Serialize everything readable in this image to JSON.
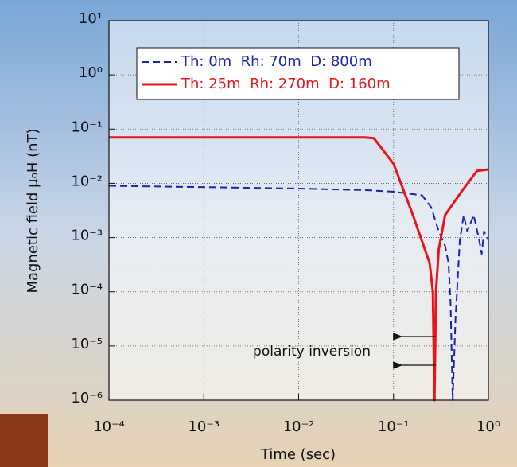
{
  "chart_data": {
    "type": "line",
    "x_label": "Time (sec)",
    "y_label": "Magnetic field μ₀H (nT)",
    "annotation": "polarity inversion",
    "log_x": true,
    "log_y": true,
    "grid": true,
    "legend": "top-right",
    "xlim": [
      0.0001,
      1
    ],
    "ylim": [
      1e-06,
      10
    ],
    "xticks": [
      {
        "value": 0.0001,
        "label": "10⁻⁴"
      },
      {
        "value": 0.001,
        "label": "10⁻³"
      },
      {
        "value": 0.01,
        "label": "10⁻²"
      },
      {
        "value": 0.1,
        "label": "10⁻¹"
      },
      {
        "value": 1,
        "label": "10⁰"
      }
    ],
    "yticks": [
      {
        "value": 1e-06,
        "label": "10⁻⁶"
      },
      {
        "value": 1e-05,
        "label": "10⁻⁵"
      },
      {
        "value": 0.0001,
        "label": "10⁻⁴"
      },
      {
        "value": 0.001,
        "label": "10⁻³"
      },
      {
        "value": 0.01,
        "label": "10⁻²"
      },
      {
        "value": 0.1,
        "label": "10⁻¹"
      },
      {
        "value": 1,
        "label": "10⁰"
      },
      {
        "value": 10,
        "label": "10¹"
      }
    ],
    "series": [
      {
        "name": "Th: 0m  Rh: 70m  D: 800m",
        "color": "#1a22b0",
        "dash": true,
        "x": [
          0.0001,
          0.001,
          0.01,
          0.05,
          0.1,
          0.2,
          0.25,
          0.3,
          0.35,
          0.38,
          0.4,
          0.42,
          0.45,
          0.5,
          0.55,
          0.6,
          0.7,
          0.8,
          0.85,
          0.9,
          1
        ],
        "values": [
          0.009,
          0.0085,
          0.008,
          0.0075,
          0.007,
          0.006,
          0.0036,
          0.0013,
          0.0007,
          0.00034,
          6e-05,
          1e-06,
          3e-05,
          0.0009,
          0.0026,
          0.0013,
          0.0026,
          0.0009,
          0.0005,
          0.0013,
          0.0009
        ]
      },
      {
        "name": "Th: 25m  Rh: 270m  D: 160m",
        "color": "#e8141c",
        "dash": false,
        "x": [
          0.0001,
          0.001,
          0.01,
          0.05,
          0.062,
          0.1,
          0.16,
          0.24,
          0.26,
          0.27,
          0.28,
          0.3,
          0.35,
          0.52,
          0.76,
          1
        ],
        "values": [
          0.07,
          0.07,
          0.07,
          0.07,
          0.068,
          0.023,
          0.0026,
          0.00034,
          0.0001,
          1e-06,
          0.0001,
          0.0006,
          0.0026,
          0.007,
          0.017,
          0.018
        ]
      }
    ]
  }
}
